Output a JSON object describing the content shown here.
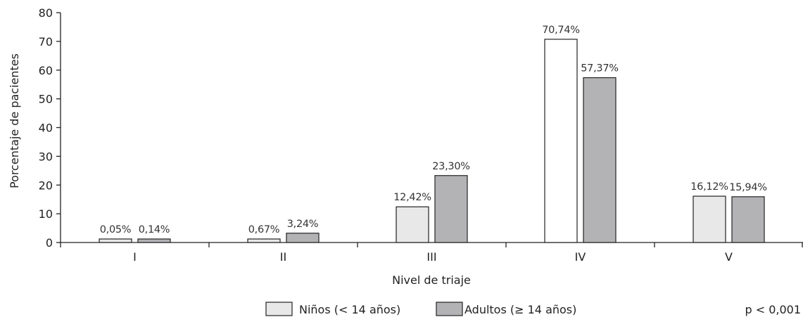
{
  "chart_data": {
    "type": "bar",
    "xlabel": "Nivel de triaje",
    "ylabel": "Porcentaje de pacientes",
    "ylim": [
      0,
      80
    ],
    "yticks": [
      0,
      10,
      20,
      30,
      40,
      50,
      60,
      70,
      80
    ],
    "categories": [
      "I",
      "II",
      "III",
      "IV",
      "V"
    ],
    "series": [
      {
        "name": "Niños (< 14 años)",
        "color": "#e8e8e8",
        "values": [
          0.05,
          0.67,
          12.42,
          70.74,
          16.12
        ],
        "labels": [
          "0,05%",
          "0,67%",
          "12,42%",
          "70,74%",
          "16,12%"
        ]
      },
      {
        "name": "Adultos (≥ 14 años)",
        "color": "#b3b3b6",
        "values": [
          0.14,
          3.24,
          23.3,
          57.37,
          15.94
        ],
        "labels": [
          "0,14%",
          "3,24%",
          "23,30%",
          "57,37%",
          "15,94%"
        ]
      }
    ],
    "bar_fill_overrides": [
      {
        "series": 0,
        "category": 3,
        "color": "#ffffff"
      }
    ],
    "annotation": "p < 0,001",
    "grid": false,
    "legend": "bottom"
  }
}
